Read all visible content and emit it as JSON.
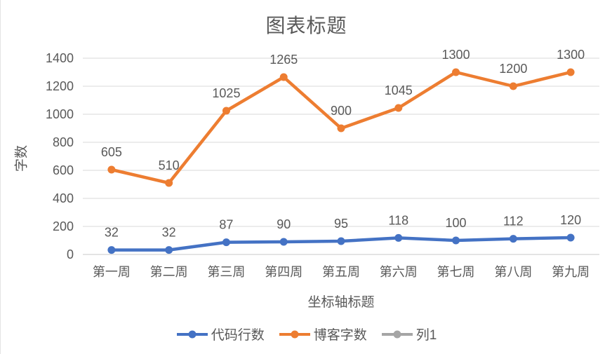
{
  "chart_data": {
    "type": "line",
    "title": "图表标题",
    "xlabel": "坐标轴标题",
    "ylabel": "字数",
    "categories": [
      "第一周",
      "第二周",
      "第三周",
      "第四周",
      "第五周",
      "第六周",
      "第七周",
      "第八周",
      "第九周"
    ],
    "series": [
      {
        "name": "代码行数",
        "color": "#4472C4",
        "values": [
          32,
          32,
          87,
          90,
          95,
          118,
          100,
          112,
          120
        ]
      },
      {
        "name": "博客字数",
        "color": "#ED7D31",
        "values": [
          605,
          510,
          1025,
          1265,
          900,
          1045,
          1300,
          1200,
          1300
        ]
      },
      {
        "name": "列1",
        "color": "#A5A5A5",
        "values": []
      }
    ],
    "ylim": [
      0,
      1400
    ],
    "ytick_step": 200,
    "grid": true,
    "legend_position": "bottom",
    "data_labels": true,
    "text_color": "#595959",
    "gridline_color": "#D9D9D9",
    "axis_line_color": "#C9C9C9"
  }
}
